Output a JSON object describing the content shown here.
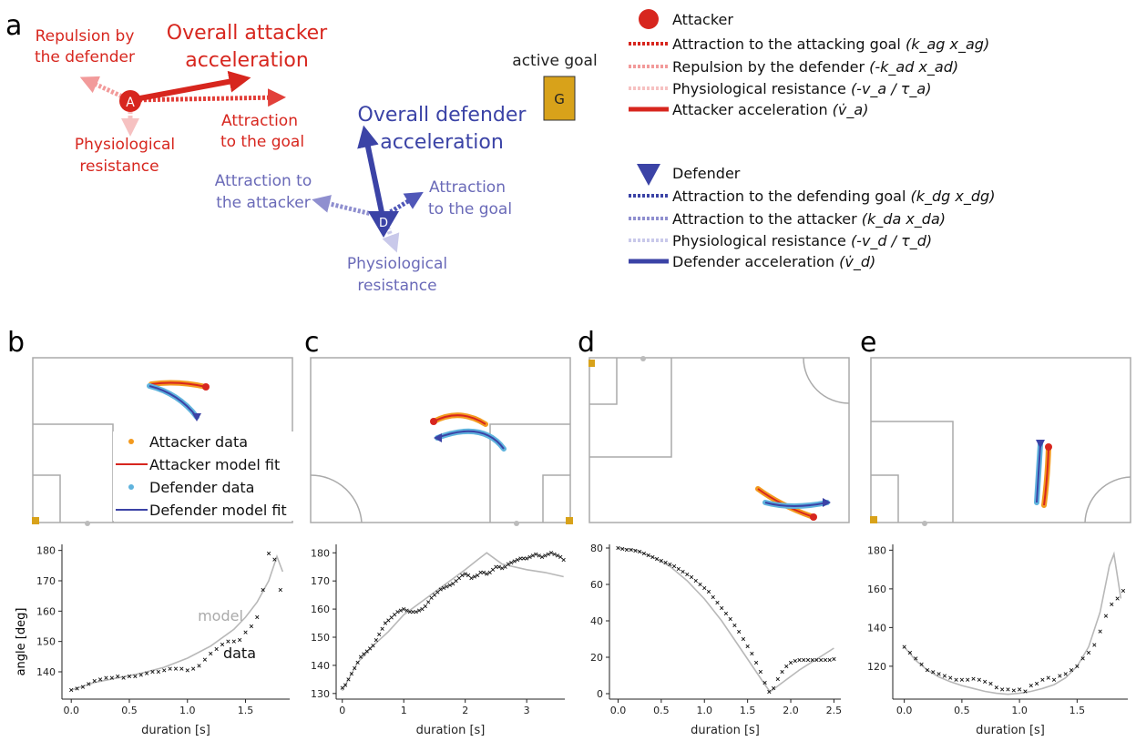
{
  "panel_labels": {
    "a": "a",
    "b": "b",
    "c": "c",
    "d": "d",
    "e": "e"
  },
  "colors": {
    "attacker": "#d7261e",
    "attacker_light": "#f29a9a",
    "attacker_lighter": "#f6c1c1",
    "defender": "#3b43a6",
    "defender_light": "#8f8fcf",
    "defender_lighter": "#c9c9ea",
    "attacker_data": "#f39a1e",
    "defender_data": "#5fb3dd",
    "goal": "#d8a21a",
    "field_line": "#aaaaaa",
    "model_curve": "#b8b8b8",
    "data_marker": "#111111"
  },
  "panel_a": {
    "attacker_marker": "A",
    "defender_marker": "D",
    "attacker_labels": {
      "overall_line1": "Overall attacker",
      "overall_line2": "acceleration",
      "repulsion_line1": "Repulsion by",
      "repulsion_line2": "the defender",
      "attraction_line1": "Attraction",
      "attraction_line2": "to the goal",
      "resistance_line1": "Physiological",
      "resistance_line2": "resistance"
    },
    "defender_labels": {
      "overall_line1": "Overall defender",
      "overall_line2": "acceleration",
      "attacker_line1": "Attraction to",
      "attacker_line2": "the attacker",
      "goal_line1": "Attraction",
      "goal_line2": "to the goal",
      "resistance_line1": "Physiological",
      "resistance_line2": "resistance"
    },
    "goal": {
      "caption": "active goal",
      "letter": "G"
    }
  },
  "legend_a": {
    "attacker": [
      {
        "prefix": "Attacker",
        "math": ""
      },
      {
        "prefix": "Attraction to the attacking goal",
        "math": "(k_ag x_ag)"
      },
      {
        "prefix": "Repulsion by the defender",
        "math": "(-k_ad x_ad)"
      },
      {
        "prefix": "Physiological resistance",
        "math": "(-v_a / τ_a)"
      },
      {
        "prefix": "Attacker acceleration",
        "math": "(v̇_a)"
      }
    ],
    "defender": [
      {
        "prefix": "Defender",
        "math": ""
      },
      {
        "prefix": "Attraction to the defending goal",
        "math": "(k_dg x_dg)"
      },
      {
        "prefix": "Attraction to the attacker",
        "math": "(k_da x_da)"
      },
      {
        "prefix": "Physiological resistance",
        "math": "(-v_d / τ_d)"
      },
      {
        "prefix": "Defender acceleration",
        "math": "(v̇_d)"
      }
    ]
  },
  "legend_b": [
    "Attacker data",
    "Attacker model fit",
    "Defender data",
    "Defender model fit"
  ],
  "plot_labels": {
    "xlabel": "duration [s]",
    "ylabel": "angle [deg]",
    "model_annotation": "model",
    "data_annotation": "data"
  },
  "plots": [
    {
      "id": "b",
      "xlim": [
        -0.08,
        1.88
      ],
      "ylim": [
        131,
        182
      ],
      "xticks": [
        0.0,
        0.5,
        1.0,
        1.5
      ],
      "xtick_labels": [
        "0.0",
        "0.5",
        "1.0",
        "1.5"
      ],
      "yticks": [
        140,
        150,
        160,
        170,
        180
      ],
      "ytick_labels": [
        "140",
        "150",
        "160",
        "170",
        "180"
      ],
      "model": {
        "x": [
          0.0,
          0.2,
          0.4,
          0.6,
          0.8,
          1.0,
          1.2,
          1.4,
          1.5,
          1.6,
          1.7,
          1.77,
          1.82
        ],
        "y": [
          134,
          136.5,
          138,
          139.5,
          141.5,
          144.5,
          148.5,
          154,
          158,
          163,
          170,
          178,
          173
        ]
      },
      "data": {
        "x": [
          0.0,
          0.05,
          0.1,
          0.15,
          0.2,
          0.25,
          0.3,
          0.35,
          0.4,
          0.45,
          0.5,
          0.55,
          0.6,
          0.65,
          0.7,
          0.75,
          0.8,
          0.85,
          0.9,
          0.95,
          1.0,
          1.05,
          1.1,
          1.15,
          1.2,
          1.25,
          1.3,
          1.35,
          1.4,
          1.45,
          1.5,
          1.55,
          1.6,
          1.65,
          1.7,
          1.75,
          1.8
        ],
        "y": [
          134,
          134.5,
          135,
          136,
          137,
          137.5,
          138,
          138,
          138.5,
          138,
          138.5,
          138.5,
          139,
          139.5,
          140,
          140,
          140.5,
          141,
          141,
          141,
          140.5,
          141,
          142,
          144,
          146,
          147.5,
          149,
          150,
          150,
          150.5,
          153,
          155,
          158,
          167,
          179,
          177,
          167
        ]
      }
    },
    {
      "id": "c",
      "xlim": [
        -0.1,
        3.62
      ],
      "ylim": [
        128,
        183
      ],
      "xticks": [
        0,
        1,
        2,
        3
      ],
      "xtick_labels": [
        "0",
        "1",
        "2",
        "3"
      ],
      "yticks": [
        130,
        140,
        150,
        160,
        170,
        180
      ],
      "ytick_labels": [
        "130",
        "140",
        "150",
        "160",
        "170",
        "180"
      ],
      "model": {
        "x": [
          0.0,
          0.25,
          0.5,
          0.75,
          1.0,
          1.25,
          1.5,
          1.75,
          2.0,
          2.2,
          2.35,
          2.6,
          3.0,
          3.3,
          3.6
        ],
        "y": [
          131,
          141,
          147,
          152,
          158,
          162,
          166,
          170,
          174,
          177.5,
          180,
          176,
          174,
          173,
          171.5
        ]
      },
      "data": {
        "x": [
          0.0,
          0.05,
          0.1,
          0.15,
          0.2,
          0.25,
          0.3,
          0.35,
          0.4,
          0.45,
          0.5,
          0.55,
          0.6,
          0.65,
          0.7,
          0.75,
          0.8,
          0.85,
          0.9,
          0.95,
          1.0,
          1.05,
          1.1,
          1.15,
          1.2,
          1.25,
          1.3,
          1.35,
          1.4,
          1.45,
          1.5,
          1.55,
          1.6,
          1.65,
          1.7,
          1.75,
          1.8,
          1.85,
          1.9,
          1.95,
          2.0,
          2.05,
          2.1,
          2.15,
          2.2,
          2.25,
          2.3,
          2.35,
          2.4,
          2.45,
          2.5,
          2.55,
          2.6,
          2.65,
          2.7,
          2.75,
          2.8,
          2.85,
          2.9,
          2.95,
          3.0,
          3.05,
          3.1,
          3.15,
          3.2,
          3.25,
          3.3,
          3.35,
          3.4,
          3.45,
          3.5,
          3.55,
          3.6
        ],
        "y": [
          132,
          133,
          135,
          137,
          139,
          141,
          143,
          144,
          145,
          146,
          147,
          149,
          151,
          153,
          155,
          156,
          157,
          158,
          159,
          159.5,
          160,
          159.5,
          159,
          159,
          159,
          159.5,
          160,
          161,
          162.5,
          164,
          165,
          166,
          167,
          167.5,
          168,
          168.5,
          169,
          170,
          171,
          172,
          172.5,
          172,
          171,
          171.5,
          172,
          173,
          173,
          172.5,
          173,
          174,
          175,
          175,
          174.5,
          175,
          176,
          176.5,
          177,
          177.5,
          178,
          178,
          178,
          178.5,
          179,
          179.5,
          179,
          178.5,
          179,
          179.5,
          180,
          179.5,
          179,
          178.5,
          177.5
        ]
      }
    },
    {
      "id": "d",
      "xlim": [
        -0.1,
        2.58
      ],
      "ylim": [
        -3,
        82
      ],
      "xticks": [
        0.0,
        0.5,
        1.0,
        1.5,
        2.0,
        2.5
      ],
      "xtick_labels": [
        "0.0",
        "0.5",
        "1.0",
        "1.5",
        "2.0",
        "2.5"
      ],
      "yticks": [
        0,
        20,
        40,
        60,
        80
      ],
      "ytick_labels": [
        "0",
        "20",
        "40",
        "60",
        "80"
      ],
      "model": {
        "x": [
          0.0,
          0.2,
          0.4,
          0.6,
          0.8,
          1.0,
          1.2,
          1.4,
          1.6,
          1.7,
          1.76,
          1.9,
          2.1,
          2.3,
          2.5
        ],
        "y": [
          80,
          79,
          75,
          70,
          62,
          52,
          40,
          26,
          12,
          5,
          1,
          6,
          13,
          19,
          25
        ]
      },
      "data": {
        "x": [
          0.0,
          0.05,
          0.1,
          0.15,
          0.2,
          0.25,
          0.3,
          0.35,
          0.4,
          0.45,
          0.5,
          0.55,
          0.6,
          0.65,
          0.7,
          0.75,
          0.8,
          0.85,
          0.9,
          0.95,
          1.0,
          1.05,
          1.1,
          1.15,
          1.2,
          1.25,
          1.3,
          1.35,
          1.4,
          1.45,
          1.5,
          1.55,
          1.6,
          1.65,
          1.7,
          1.75,
          1.8,
          1.85,
          1.9,
          1.95,
          2.0,
          2.05,
          2.1,
          2.15,
          2.2,
          2.25,
          2.3,
          2.35,
          2.4,
          2.45,
          2.5
        ],
        "y": [
          80,
          79.5,
          79,
          79,
          78.5,
          78,
          77,
          76,
          75,
          74,
          73,
          72,
          71,
          70,
          68.5,
          67,
          65.5,
          64,
          62,
          60,
          58,
          56,
          53,
          50,
          47,
          44,
          41,
          37.5,
          34,
          30,
          26,
          22,
          17,
          12,
          6,
          1,
          3,
          8,
          12,
          15,
          17,
          18,
          18.5,
          18.5,
          18.5,
          18.5,
          18.5,
          18.5,
          18.5,
          18.5,
          19
        ]
      }
    },
    {
      "id": "e",
      "xlim": [
        -0.1,
        1.94
      ],
      "ylim": [
        103,
        183
      ],
      "xticks": [
        0.0,
        0.5,
        1.0,
        1.5
      ],
      "xtick_labels": [
        "0.0",
        "0.5",
        "1.0",
        "1.5"
      ],
      "yticks": [
        120,
        140,
        160,
        180
      ],
      "ytick_labels": [
        "120",
        "140",
        "160",
        "180"
      ],
      "model": {
        "x": [
          0.0,
          0.1,
          0.2,
          0.3,
          0.4,
          0.5,
          0.6,
          0.7,
          0.8,
          0.9,
          1.0,
          1.1,
          1.2,
          1.3,
          1.4,
          1.5,
          1.6,
          1.7,
          1.78,
          1.82,
          1.88
        ],
        "y": [
          130,
          123,
          118,
          114.5,
          112,
          110,
          108.5,
          107,
          106,
          105.5,
          106,
          107,
          108.5,
          110.5,
          114,
          120,
          130,
          148,
          172,
          178,
          155
        ]
      },
      "data": {
        "x": [
          0.0,
          0.05,
          0.1,
          0.15,
          0.2,
          0.25,
          0.3,
          0.35,
          0.4,
          0.45,
          0.5,
          0.55,
          0.6,
          0.65,
          0.7,
          0.75,
          0.8,
          0.85,
          0.9,
          0.95,
          1.0,
          1.05,
          1.1,
          1.15,
          1.2,
          1.25,
          1.3,
          1.35,
          1.4,
          1.45,
          1.5,
          1.55,
          1.6,
          1.65,
          1.7,
          1.75,
          1.8,
          1.85,
          1.9
        ],
        "y": [
          130,
          127,
          124,
          121,
          118,
          117,
          116,
          115,
          114,
          113,
          113,
          113,
          113.5,
          113,
          112,
          111,
          109,
          108,
          108,
          107.5,
          108,
          107,
          110,
          111,
          113,
          114,
          113,
          115,
          116,
          118,
          120,
          124,
          127,
          131,
          138,
          146,
          152,
          155,
          159
        ]
      }
    }
  ]
}
